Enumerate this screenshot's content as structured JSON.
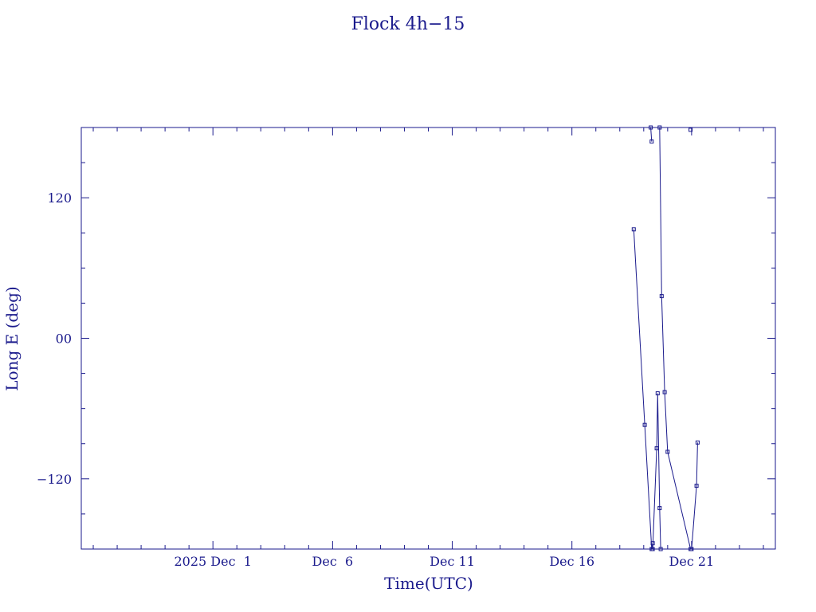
{
  "chart_data": {
    "type": "line",
    "title": "Flock 4h−15",
    "xlabel": "Time(UTC)",
    "ylabel": "Long E (deg)",
    "xlim": [
      "2025-11-25T12:00",
      "2025-12-24T12:00"
    ],
    "ylim": [
      -180,
      180
    ],
    "grid": false,
    "x_major_ticks": [
      {
        "date": "2025-12-01T00:00",
        "label": "2025 Dec  1"
      },
      {
        "date": "2025-12-06T00:00",
        "label": "Dec  6"
      },
      {
        "date": "2025-12-11T00:00",
        "label": "Dec 11"
      },
      {
        "date": "2025-12-16T00:00",
        "label": "Dec 16"
      },
      {
        "date": "2025-12-21T00:00",
        "label": "Dec 21"
      }
    ],
    "y_major_ticks": [
      {
        "value": 120,
        "label": "120"
      },
      {
        "value": 0,
        "label": "00"
      },
      {
        "value": -120,
        "label": "−120"
      }
    ],
    "color": "#1a1a8c",
    "series": [
      {
        "points": [
          {
            "x": "2025-12-18T14:00",
            "y": 93
          },
          {
            "x": "2025-12-19T01:00",
            "y": -74
          },
          {
            "x": "2025-12-19T08:00",
            "y": -180
          },
          {
            "x": "2025-12-19T09:00",
            "y": -175
          }
        ]
      },
      {
        "points": [
          {
            "x": "2025-12-19T07:00",
            "y": 180
          },
          {
            "x": "2025-12-19T08:00",
            "y": 168
          }
        ]
      },
      {
        "points": [
          {
            "x": "2025-12-19T09:00",
            "y": -180
          },
          {
            "x": "2025-12-19T13:00",
            "y": -94
          },
          {
            "x": "2025-12-19T14:00",
            "y": -47
          },
          {
            "x": "2025-12-19T16:00",
            "y": -145
          },
          {
            "x": "2025-12-19T17:00",
            "y": -180
          }
        ]
      },
      {
        "points": [
          {
            "x": "2025-12-19T16:00",
            "y": 180
          },
          {
            "x": "2025-12-19T18:00",
            "y": 36
          },
          {
            "x": "2025-12-19T21:00",
            "y": -46
          },
          {
            "x": "2025-12-20T00:00",
            "y": -97
          },
          {
            "x": "2025-12-20T23:00",
            "y": -180
          }
        ]
      },
      {
        "points": [
          {
            "x": "2025-12-20T23:00",
            "y": 178
          }
        ]
      },
      {
        "points": [
          {
            "x": "2025-12-21T00:00",
            "y": -180
          },
          {
            "x": "2025-12-21T05:00",
            "y": -126
          },
          {
            "x": "2025-12-21T06:00",
            "y": -89
          }
        ]
      }
    ]
  }
}
